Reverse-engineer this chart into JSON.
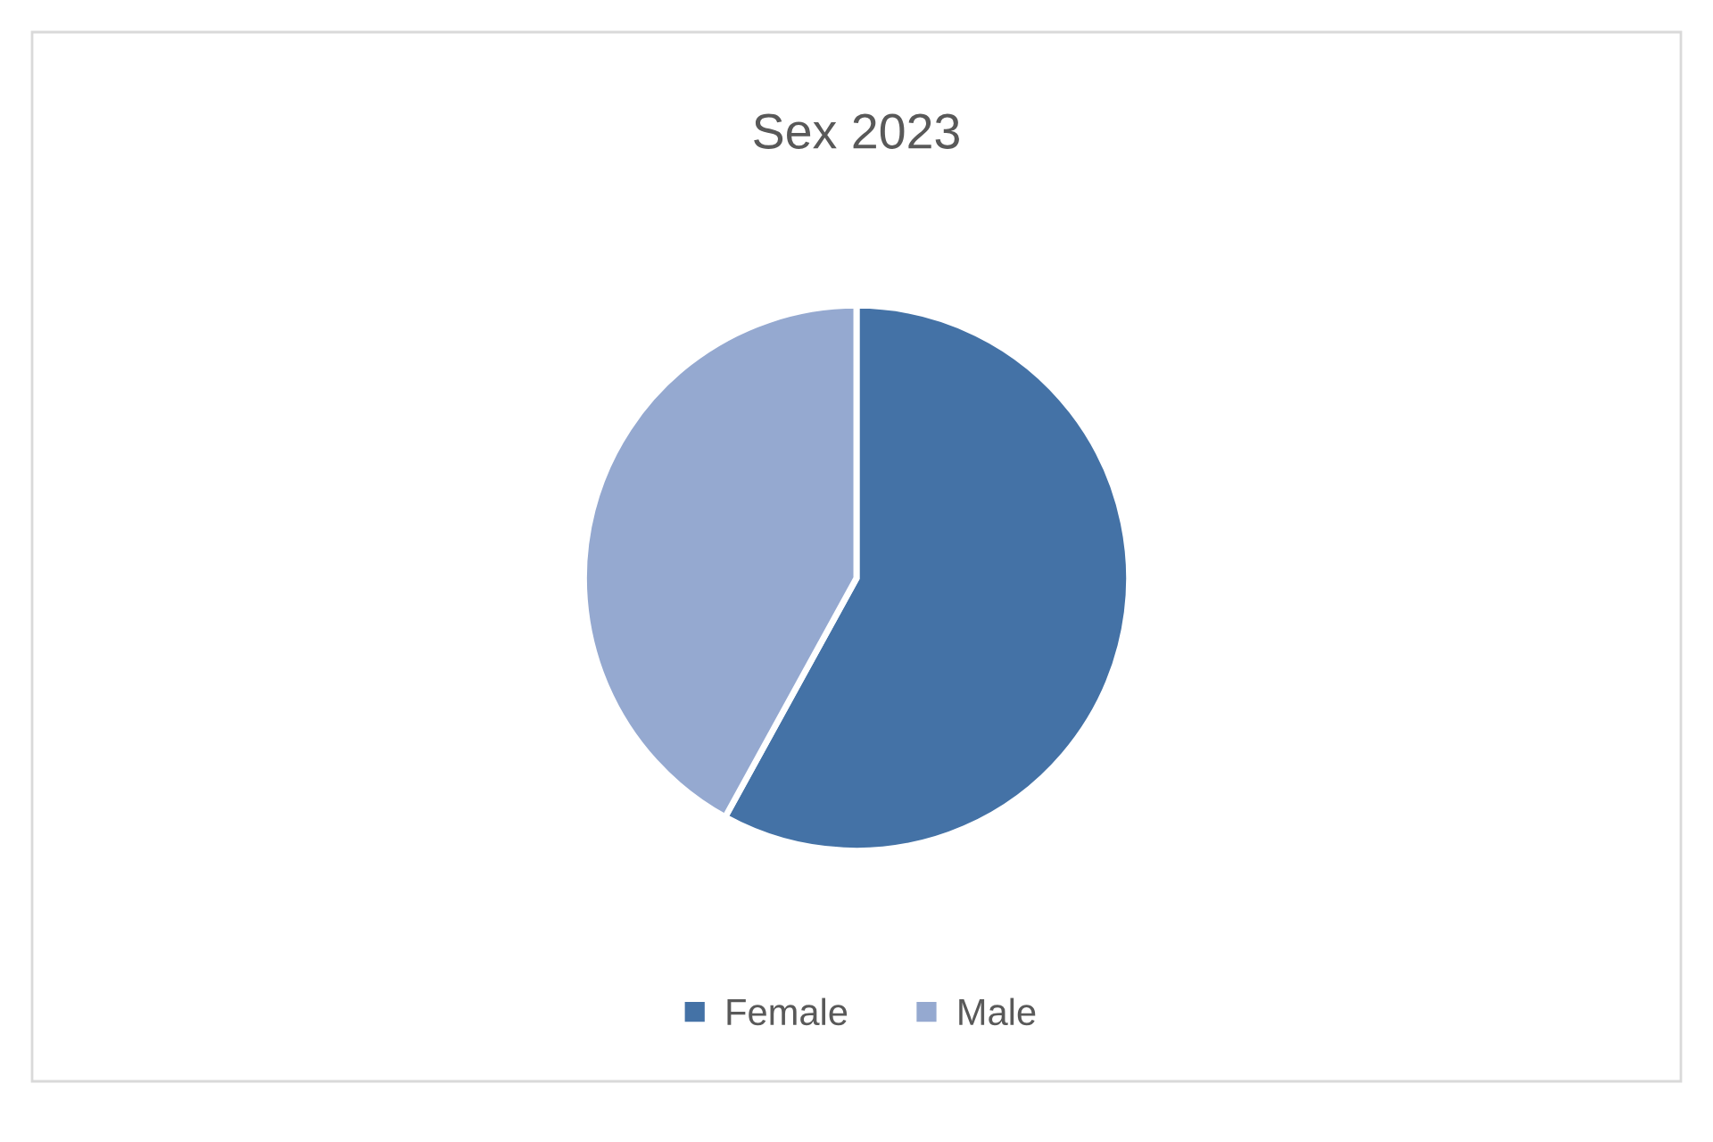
{
  "chart_data": {
    "type": "pie",
    "title": "Sex 2023",
    "categories": [
      "Female",
      "Male"
    ],
    "values": [
      58,
      42
    ],
    "colors": [
      "#4472a6",
      "#95a9d0"
    ],
    "legend": "bottom"
  }
}
